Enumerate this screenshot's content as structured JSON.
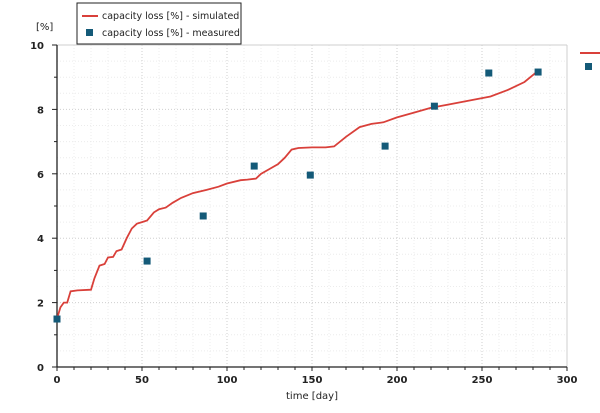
{
  "chart_data": {
    "type": "line",
    "title": "",
    "xlabel": "time [day]",
    "ylabel": "[%]",
    "xlim": [
      0,
      300
    ],
    "ylim": [
      0,
      10
    ],
    "xticks": [
      0,
      50,
      100,
      150,
      200,
      250,
      300
    ],
    "yticks": [
      0,
      2,
      4,
      6,
      8,
      10
    ],
    "grid": true,
    "legend_position": "top-left",
    "series": [
      {
        "name": "capacity loss [%] - simulated",
        "kind": "line",
        "color": "#d9403a",
        "x": [
          0,
          2,
          4,
          6,
          8,
          12,
          20,
          22,
          25,
          28,
          30,
          33,
          35,
          38,
          41,
          44,
          47,
          50,
          53,
          57,
          60,
          64,
          68,
          73,
          80,
          88,
          95,
          100,
          108,
          112,
          117,
          120,
          125,
          130,
          134,
          138,
          142,
          150,
          158,
          163,
          170,
          178,
          185,
          192,
          200,
          210,
          220,
          230,
          240,
          255,
          265,
          275,
          283
        ],
        "y": [
          1.5,
          1.85,
          2.0,
          2.0,
          2.35,
          2.38,
          2.4,
          2.75,
          3.15,
          3.2,
          3.4,
          3.42,
          3.6,
          3.65,
          4.0,
          4.3,
          4.45,
          4.5,
          4.55,
          4.8,
          4.9,
          4.95,
          5.1,
          5.25,
          5.4,
          5.5,
          5.6,
          5.7,
          5.8,
          5.82,
          5.85,
          6.0,
          6.15,
          6.3,
          6.5,
          6.75,
          6.8,
          6.82,
          6.82,
          6.85,
          7.15,
          7.45,
          7.55,
          7.6,
          7.75,
          7.9,
          8.05,
          8.15,
          8.25,
          8.4,
          8.6,
          8.85,
          9.2
        ]
      },
      {
        "name": "capacity loss [%] - measured",
        "kind": "scatter",
        "color": "#145a78",
        "x": [
          0,
          53,
          86,
          116,
          149,
          193,
          222,
          254,
          283
        ],
        "y": [
          1.49,
          3.29,
          4.69,
          6.24,
          5.96,
          6.86,
          8.1,
          9.13,
          9.16
        ]
      }
    ]
  }
}
